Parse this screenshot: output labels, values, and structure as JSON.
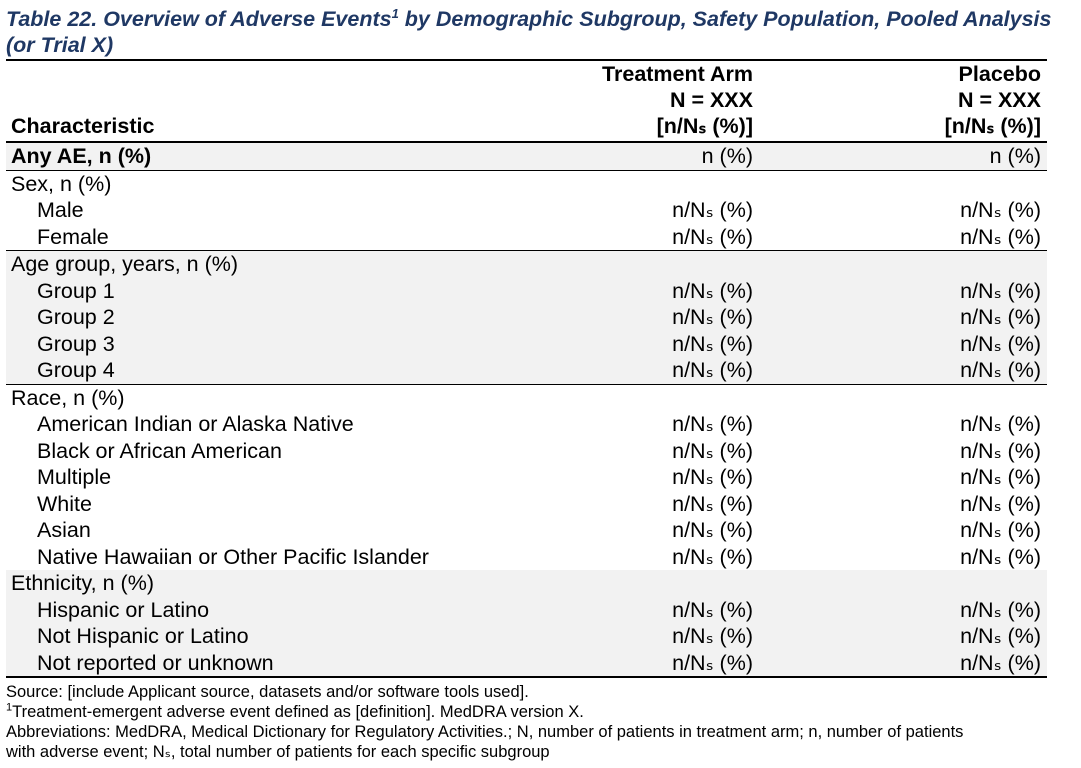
{
  "title": {
    "prefix": "Table 22. Overview of Adverse Events",
    "footnote_marker": "1",
    "suffix": " by Demographic Subgroup, Safety Population, Pooled Analysis (or Trial X)"
  },
  "header": {
    "characteristic": "Characteristic",
    "treatment": {
      "line1": "Treatment Arm",
      "line2": "N = XXX",
      "line3": "[n/Nₛ (%)]"
    },
    "placebo": {
      "line1": "Placebo",
      "line2": "N = XXX",
      "line3": "[n/Nₛ (%)]"
    }
  },
  "rows": {
    "any_ae": {
      "label": "Any AE, n (%)",
      "treatment": "n (%)",
      "placebo": "n (%)"
    },
    "sex": {
      "label": "Sex, n (%)",
      "items": [
        {
          "label": "Male",
          "treatment": "n/Nₛ (%)",
          "placebo": "n/Nₛ (%)"
        },
        {
          "label": "Female",
          "treatment": "n/Nₛ (%)",
          "placebo": "n/Nₛ (%)"
        }
      ]
    },
    "age": {
      "label": "Age group, years, n (%)",
      "items": [
        {
          "label": "Group 1",
          "treatment": "n/Nₛ (%)",
          "placebo": "n/Nₛ (%)"
        },
        {
          "label": "Group 2",
          "treatment": "n/Nₛ (%)",
          "placebo": "n/Nₛ (%)"
        },
        {
          "label": "Group 3",
          "treatment": "n/Nₛ (%)",
          "placebo": "n/Nₛ (%)"
        },
        {
          "label": "Group 4",
          "treatment": "n/Nₛ (%)",
          "placebo": "n/Nₛ (%)"
        }
      ]
    },
    "race": {
      "label": "Race, n (%)",
      "items": [
        {
          "label": "American Indian or Alaska Native",
          "treatment": "n/Nₛ (%)",
          "placebo": "n/Nₛ (%)"
        },
        {
          "label": "Black or African American",
          "treatment": "n/Nₛ (%)",
          "placebo": "n/Nₛ (%)"
        },
        {
          "label": "Multiple",
          "treatment": "n/Nₛ (%)",
          "placebo": "n/Nₛ (%)"
        },
        {
          "label": "White",
          "treatment": "n/Nₛ (%)",
          "placebo": "n/Nₛ (%)"
        },
        {
          "label": "Asian",
          "treatment": "n/Nₛ (%)",
          "placebo": "n/Nₛ (%)"
        },
        {
          "label": "Native Hawaiian or Other Pacific Islander",
          "treatment": "n/Nₛ (%)",
          "placebo": "n/Nₛ (%)"
        }
      ]
    },
    "ethnicity": {
      "label": "Ethnicity, n (%)",
      "items": [
        {
          "label": "Hispanic or Latino",
          "treatment": "n/Nₛ (%)",
          "placebo": "n/Nₛ (%)"
        },
        {
          "label": "Not Hispanic or Latino",
          "treatment": "n/Nₛ (%)",
          "placebo": "n/Nₛ (%)"
        },
        {
          "label": "Not reported or unknown",
          "treatment": "n/Nₛ (%)",
          "placebo": "n/Nₛ (%)"
        }
      ]
    }
  },
  "footnotes": {
    "source": "Source: [include Applicant source, datasets and/or software tools used].",
    "note1_marker": "1",
    "note1": "Treatment-emergent adverse event defined as [definition]. MedDRA version X.",
    "abbrev_line1": "Abbreviations: MedDRA, Medical Dictionary for Regulatory Activities.; N, number of patients in treatment arm; n, number of patients",
    "abbrev_line2": "with adverse event; Nₛ, total number of patients for each specific subgroup"
  }
}
